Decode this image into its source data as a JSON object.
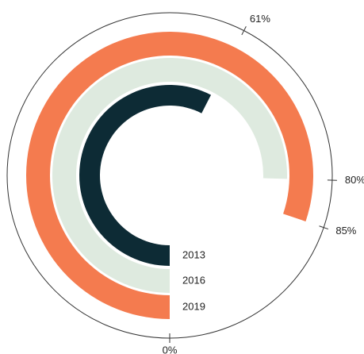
{
  "chart_data": {
    "type": "radial_bar",
    "categories": [
      "2013",
      "2016",
      "2019"
    ],
    "values": [
      61,
      80,
      85
    ],
    "value_labels": [
      "61%",
      "80%",
      "85%"
    ],
    "colors": [
      "#0d2b35",
      "#deeadf",
      "#f47b4f"
    ],
    "xlim": [
      0,
      106
    ],
    "xticks": [
      {
        "value": 0,
        "label": "0%"
      }
    ]
  }
}
